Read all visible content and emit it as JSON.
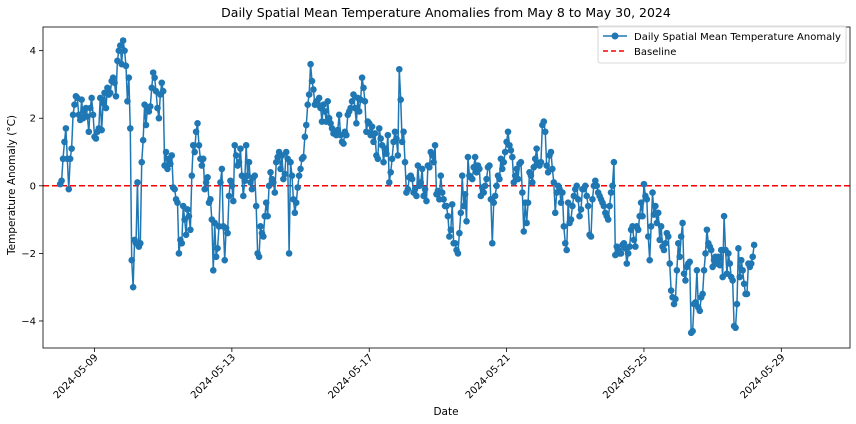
{
  "chart_data": {
    "type": "line",
    "title": "Daily Spatial Mean Temperature Anomalies from May 8 to May 30, 2024",
    "xlabel": "Date",
    "ylabel": "Temperature Anomaly (°C)",
    "x_range": [
      "2024-05-07T12:00",
      "2024-05-31T00:00"
    ],
    "ylim": [
      -4.8,
      4.7
    ],
    "x_ticks": [
      "2024-05-09",
      "2024-05-13",
      "2024-05-17",
      "2024-05-21",
      "2024-05-25",
      "2024-05-29"
    ],
    "y_ticks": [
      -4,
      -2,
      0,
      2,
      4
    ],
    "legend_position": "top-right",
    "grid": false,
    "series": [
      {
        "name": "Daily Spatial Mean Temperature Anomaly",
        "color": "#1f77b4",
        "marker": "circle",
        "x_start": "2024-05-08T00:00",
        "x_step_hours": 1,
        "values": [
          0.05,
          0.15,
          0.8,
          1.3,
          1.7,
          0.8,
          -0.1,
          0.8,
          1.1,
          2.1,
          2.4,
          2.65,
          2.6,
          2.1,
          1.95,
          2.55,
          2.0,
          2.2,
          2.3,
          2.05,
          1.6,
          2.3,
          2.6,
          2.1,
          1.45,
          1.4,
          1.6,
          1.7,
          2.6,
          1.65,
          2.45,
          2.75,
          2.3,
          2.9,
          2.7,
          2.75,
          3.1,
          3.2,
          3.05,
          2.65,
          3.7,
          4.0,
          4.15,
          3.6,
          4.3,
          4.0,
          3.55,
          2.5,
          3.2,
          1.7,
          -2.2,
          -3.0,
          -1.6,
          -1.7,
          0.1,
          -1.8,
          -1.7,
          0.7,
          1.35,
          2.4,
          1.8,
          2.3,
          2.2,
          2.35,
          2.9,
          3.35,
          3.2,
          2.8,
          2.3,
          2.0,
          2.7,
          3.05,
          2.8,
          0.6,
          1.0,
          0.5,
          0.8,
          0.65,
          0.9,
          -0.05,
          -0.1,
          -0.4,
          -0.5,
          -2.0,
          -1.6,
          -1.7,
          -0.6,
          -1.0,
          -1.45,
          -0.7,
          -0.9,
          -1.3,
          0.3,
          1.2,
          1.0,
          1.6,
          1.85,
          1.2,
          0.8,
          0.6,
          0.8,
          -0.1,
          0.1,
          0.25,
          -0.5,
          -0.4,
          -1.0,
          -2.5,
          -1.1,
          -2.1,
          -1.85,
          -1.2,
          0.1,
          0.5,
          -1.2,
          -2.2,
          -1.25,
          -1.4,
          -0.3,
          0.15,
          0.0,
          -0.45,
          1.2,
          0.9,
          0.6,
          0.7,
          1.1,
          0.3,
          -0.3,
          0.15,
          1.2,
          0.3,
          0.7,
          0.1,
          -0.1,
          0.25,
          0.3,
          -0.6,
          -2.0,
          -2.1,
          -1.2,
          -1.4,
          -1.5,
          -0.9,
          -0.5,
          -0.9,
          0.0,
          0.4,
          0.2,
          0.1,
          -0.2,
          0.7,
          0.85,
          1.0,
          0.5,
          0.9,
          0.2,
          0.35,
          1.0,
          0.8,
          -2.0,
          0.7,
          0.3,
          -0.4,
          -0.8,
          -0.5,
          -0.05,
          0.3,
          0.5,
          0.8,
          0.85,
          1.45,
          1.8,
          2.4,
          2.7,
          3.6,
          3.1,
          2.85,
          2.4,
          2.5,
          2.4,
          2.6,
          2.3,
          1.9,
          2.4,
          2.2,
          1.9,
          2.5,
          2.0,
          1.85,
          1.7,
          1.55,
          1.6,
          1.5,
          1.65,
          2.1,
          1.5,
          1.3,
          1.25,
          1.6,
          1.5,
          2.1,
          2.2,
          2.3,
          2.5,
          2.7,
          2.3,
          1.85,
          2.6,
          2.2,
          2.55,
          3.2,
          2.9,
          2.5,
          1.6,
          1.9,
          1.85,
          1.5,
          1.75,
          1.3,
          1.55,
          0.9,
          0.8,
          1.7,
          1.4,
          1.2,
          0.7,
          1.1,
          0.95,
          1.5,
          0.1,
          0.4,
          0.8,
          1.3,
          1.6,
          1.4,
          0.9,
          3.45,
          2.55,
          1.3,
          1.6,
          0.7,
          -0.2,
          -0.1,
          0.25,
          0.3,
          0.2,
          -0.2,
          -0.1,
          -0.3,
          0.6,
          0.0,
          0.1,
          0.5,
          -0.3,
          -0.1,
          -0.45,
          0.6,
          0.55,
          1.0,
          0.9,
          0.7,
          1.2,
          -0.25,
          -0.15,
          -0.4,
          0.3,
          -0.2,
          -0.4,
          -0.6,
          -0.6,
          -0.9,
          -1.5,
          -1.3,
          -0.55,
          -1.7,
          -1.7,
          -1.9,
          -2.0,
          -1.4,
          -0.8,
          0.3,
          -0.6,
          -0.25,
          -1.05,
          0.85,
          0.3,
          0.25,
          0.2,
          0.55,
          0.85,
          0.4,
          0.6,
          0.5,
          -0.3,
          -0.05,
          -0.2,
          0.0,
          0.2,
          0.55,
          0.6,
          -0.4,
          -1.7,
          -0.5,
          -0.3,
          0.0,
          0.3,
          0.2,
          0.8,
          0.5,
          0.7,
          1.0,
          1.3,
          1.6,
          1.2,
          1.05,
          0.85,
          0.1,
          0.3,
          0.5,
          0.2,
          0.65,
          0.7,
          -0.2,
          -1.35,
          -0.5,
          -1.1,
          -0.5,
          0.4,
          0.3,
          0.1,
          0.55,
          0.8,
          1.1,
          0.65,
          0.6,
          0.7,
          1.8,
          1.9,
          1.6,
          0.6,
          0.4,
          0.9,
          1.0,
          0.5,
          0.1,
          -0.8,
          -0.2,
          0.0,
          -0.1,
          -0.5,
          -0.2,
          -1.2,
          -1.7,
          -1.9,
          -0.5,
          -1.1,
          -1.0,
          -0.6,
          -0.3,
          -0.1,
          0.0,
          -0.4,
          -0.9,
          -0.7,
          -0.1,
          -0.1,
          0.0,
          -0.3,
          -0.6,
          -1.45,
          -1.5,
          -0.4,
          0.0,
          0.15,
          0.0,
          -0.2,
          -0.3,
          -0.4,
          -0.5,
          -0.6,
          -0.8,
          -0.9,
          -1.0,
          -0.6,
          -0.2,
          0.0,
          0.7,
          -2.05,
          -1.8,
          -1.9,
          -2.0,
          -2.0,
          -1.75,
          -1.7,
          -1.85,
          -2.3,
          -2.0,
          -1.8,
          -1.3,
          -1.2,
          -1.6,
          -1.8,
          -1.2,
          -1.3,
          -0.9,
          -0.5,
          -0.9,
          0.05,
          -0.3,
          -0.4,
          -1.5,
          -2.2,
          -1.2,
          -0.2,
          -0.85,
          -0.6,
          -1.1,
          -0.8,
          -1.6,
          -1.2,
          -1.8,
          -1.9,
          -1.7,
          -1.4,
          -1.5,
          -2.3,
          -3.1,
          -3.3,
          -3.5,
          -3.35,
          -2.5,
          -1.7,
          -2.1,
          -1.5,
          -1.1,
          -2.6,
          -2.8,
          -2.4,
          -2.3,
          -2.25,
          -4.35,
          -4.3,
          -3.5,
          -3.45,
          -2.5,
          -3.6,
          -3.7,
          -3.3,
          -3.2,
          -2.5,
          -2.0,
          -1.3,
          -1.7,
          -1.8,
          -1.9,
          -2.4,
          -2.2,
          -2.1,
          -2.3,
          -2.1,
          -2.35,
          -1.9,
          -2.7,
          -0.9,
          -1.9,
          -2.6,
          -2.0,
          -2.3,
          -2.7,
          -2.8,
          -4.15,
          -4.2,
          -3.5,
          -1.85,
          -2.7,
          -2.2,
          -2.5,
          -2.9,
          -3.2,
          -3.2,
          -2.3,
          -2.4,
          -2.3,
          -2.1,
          -1.75
        ]
      }
    ],
    "baseline": {
      "name": "Baseline",
      "value": 0,
      "color": "#ff0000",
      "style": "dashed"
    }
  }
}
